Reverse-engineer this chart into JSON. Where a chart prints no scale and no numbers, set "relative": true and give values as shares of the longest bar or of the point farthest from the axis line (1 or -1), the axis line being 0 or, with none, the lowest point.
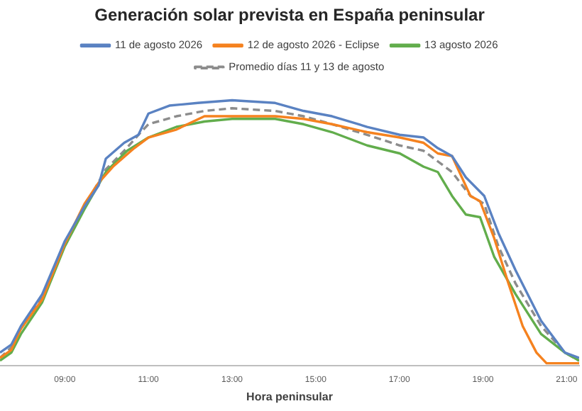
{
  "chart_data": {
    "type": "line",
    "title": "Generación solar prevista en España peninsular",
    "xlabel": "Hora peninsular",
    "relative": true,
    "legend": "top",
    "marker": "none",
    "xlim": [
      7.45,
      21.3
    ],
    "xticks": [
      {
        "value": 9,
        "label": "09:00"
      },
      {
        "value": 11,
        "label": "11:00"
      },
      {
        "value": 13,
        "label": "13:00"
      },
      {
        "value": 15,
        "label": "15:00"
      },
      {
        "value": 17,
        "label": "17:00"
      },
      {
        "value": 19,
        "label": "19:00"
      },
      {
        "value": 21,
        "label": "21:00"
      }
    ],
    "series": [
      {
        "name": "11 de agosto 2026",
        "color": "#5a82c2",
        "x": [
          7.45,
          7.72,
          7.95,
          8.46,
          9,
          9.47,
          9.81,
          9.98,
          10.42,
          10.76,
          11,
          11.5,
          12.18,
          13,
          14.03,
          14.71,
          15.39,
          16.23,
          17.01,
          17.58,
          17.92,
          18.26,
          18.59,
          19.03,
          19.37,
          19.78,
          20.39,
          20.96,
          21.3
        ],
        "values": [
          0.05,
          0.08,
          0.15,
          0.27,
          0.47,
          0.6,
          0.68,
          0.78,
          0.84,
          0.87,
          0.95,
          0.98,
          0.99,
          1,
          0.99,
          0.96,
          0.94,
          0.9,
          0.87,
          0.86,
          0.82,
          0.79,
          0.71,
          0.64,
          0.5,
          0.36,
          0.17,
          0.05,
          0.03
        ]
      },
      {
        "name": "12 de agosto 2026 - Eclipse",
        "color": "#f5821f",
        "x": [
          7.45,
          7.72,
          7.95,
          8.46,
          9,
          9.47,
          9.81,
          10.15,
          10.66,
          11,
          11.67,
          12.34,
          13,
          14.03,
          14.71,
          15.39,
          16.23,
          17.01,
          17.58,
          17.92,
          18.26,
          18.7,
          18.93,
          19.27,
          19.61,
          19.95,
          20.28,
          20.52,
          20.96,
          21.3
        ],
        "values": [
          0.03,
          0.06,
          0.14,
          0.25,
          0.46,
          0.61,
          0.69,
          0.75,
          0.82,
          0.86,
          0.89,
          0.94,
          0.94,
          0.94,
          0.93,
          0.91,
          0.88,
          0.86,
          0.84,
          0.8,
          0.79,
          0.64,
          0.62,
          0.48,
          0.31,
          0.15,
          0.05,
          0.01,
          0.01,
          0.01
        ]
      },
      {
        "name": "13 agosto 2026",
        "color": "#62ad4c",
        "x": [
          7.45,
          7.72,
          7.95,
          8.46,
          9,
          9.47,
          9.98,
          10.49,
          11,
          11.67,
          12.34,
          13,
          14.03,
          14.71,
          15.39,
          16.23,
          17.01,
          17.58,
          17.92,
          18.26,
          18.59,
          18.93,
          19.27,
          19.78,
          20.39,
          20.96,
          21.3
        ],
        "values": [
          0.02,
          0.05,
          0.12,
          0.24,
          0.45,
          0.59,
          0.73,
          0.81,
          0.86,
          0.9,
          0.92,
          0.93,
          0.93,
          0.91,
          0.88,
          0.83,
          0.8,
          0.75,
          0.73,
          0.64,
          0.57,
          0.56,
          0.41,
          0.27,
          0.12,
          0.05,
          0.02
        ]
      },
      {
        "name": "Promedio días 11 y 13 de agosto",
        "color": "#8c8c8c",
        "line_style": "dashed",
        "x": [
          7.45,
          7.72,
          7.95,
          8.46,
          9,
          9.47,
          9.98,
          10.42,
          10.82,
          11,
          11.67,
          12.34,
          13,
          14.03,
          14.71,
          15.39,
          16.23,
          17.01,
          17.58,
          17.92,
          18.26,
          18.7,
          19.03,
          19.37,
          19.78,
          20.39,
          20.96,
          21.3
        ],
        "values": [
          0.03,
          0.07,
          0.14,
          0.26,
          0.46,
          0.6,
          0.74,
          0.81,
          0.88,
          0.91,
          0.94,
          0.96,
          0.97,
          0.96,
          0.94,
          0.91,
          0.87,
          0.83,
          0.81,
          0.77,
          0.73,
          0.64,
          0.61,
          0.45,
          0.31,
          0.15,
          0.05,
          0.02
        ]
      }
    ]
  }
}
